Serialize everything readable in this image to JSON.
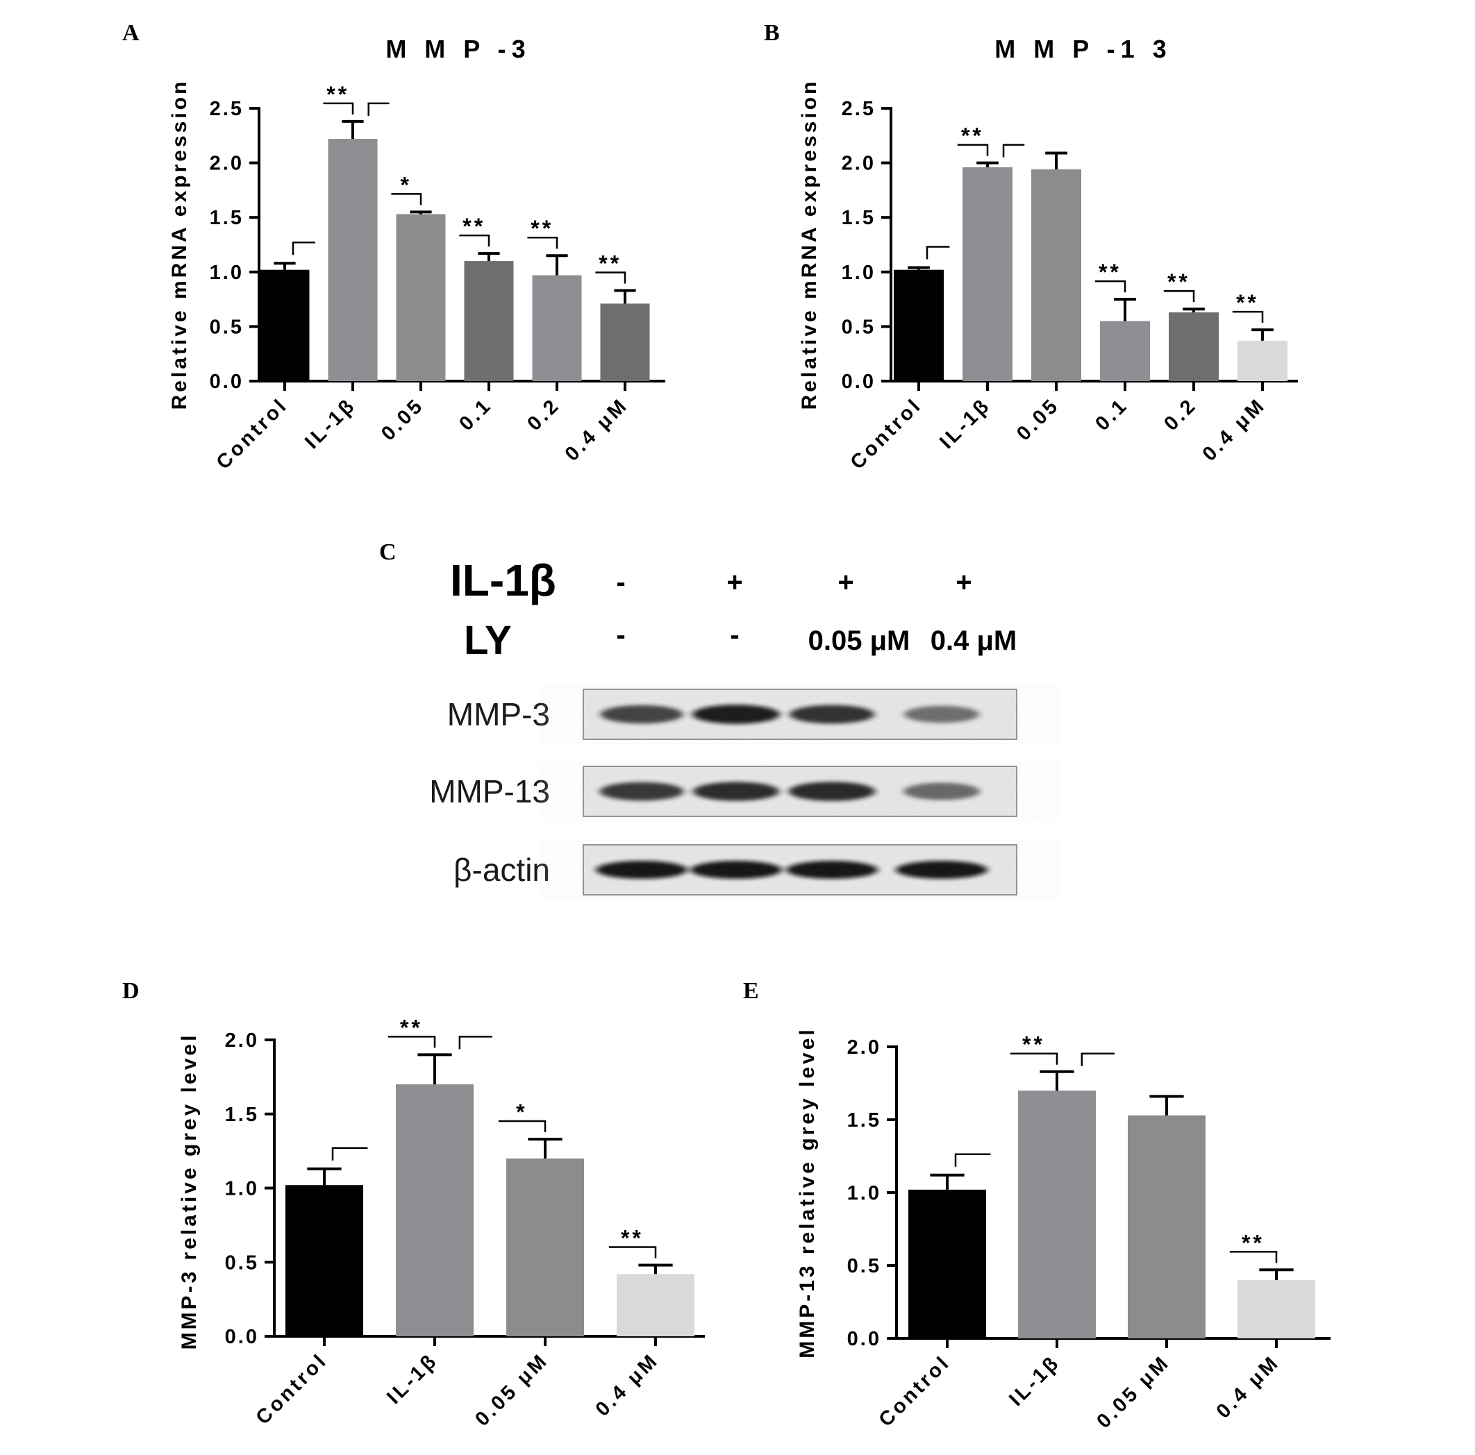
{
  "panels": {
    "A": "A",
    "B": "B",
    "C": "C",
    "D": "D",
    "E": "E"
  },
  "chart_data": [
    {
      "id": "A",
      "type": "bar",
      "title": "M M P -3",
      "ylabel": "Relative mRNA expression",
      "categories": [
        "Control",
        "IL-1β",
        "0.05",
        "0.1",
        "0.2",
        "0.4 μM"
      ],
      "values": [
        1.02,
        2.22,
        1.53,
        1.1,
        0.97,
        0.71
      ],
      "errors": [
        0.06,
        0.16,
        0.02,
        0.07,
        0.18,
        0.12
      ],
      "colors": [
        "#000000",
        "#8e8e93",
        "#8c8c8c",
        "#6e6e6e",
        "#8e8e93",
        "#6e6e6e"
      ],
      "ylim": [
        0,
        2.5
      ],
      "yticks": [
        "0.0",
        "0.5",
        "1.0",
        "1.5",
        "2.0",
        "2.5"
      ],
      "significance": [
        "",
        "**",
        "*",
        "**",
        "**",
        "**"
      ],
      "brackets": [
        0,
        1
      ]
    },
    {
      "id": "B",
      "type": "bar",
      "title": "M M P -1 3",
      "ylabel": "Relative mRNA expression",
      "categories": [
        "Control",
        "IL-1β",
        "0.05",
        "0.1",
        "0.2",
        "0.4 μM"
      ],
      "values": [
        1.02,
        1.96,
        1.94,
        0.55,
        0.63,
        0.37
      ],
      "errors": [
        0.02,
        0.04,
        0.15,
        0.2,
        0.03,
        0.1
      ],
      "colors": [
        "#000000",
        "#8e8e93",
        "#8c8c8c",
        "#8e8e93",
        "#6e6e6e",
        "#d9d9d9"
      ],
      "ylim": [
        0,
        2.5
      ],
      "yticks": [
        "0.0",
        "0.5",
        "1.0",
        "1.5",
        "2.0",
        "2.5"
      ],
      "significance": [
        "",
        "**",
        "",
        "**",
        "**",
        "**"
      ],
      "brackets": [
        0,
        1
      ]
    },
    {
      "id": "D",
      "type": "bar",
      "title": "",
      "ylabel": "MMP-3 relative grey level",
      "categories": [
        "Control",
        "IL-1β",
        "0.05 μM",
        "0.4 μM"
      ],
      "values": [
        1.02,
        1.7,
        1.2,
        0.42
      ],
      "errors": [
        0.11,
        0.2,
        0.13,
        0.06
      ],
      "colors": [
        "#000000",
        "#8e8e93",
        "#8c8c8c",
        "#d9d9d9"
      ],
      "ylim": [
        0,
        2.0
      ],
      "yticks": [
        "0.0",
        "0.5",
        "1.0",
        "1.5",
        "2.0"
      ],
      "significance": [
        "",
        "**",
        "*",
        "**"
      ],
      "brackets": [
        0,
        1
      ]
    },
    {
      "id": "E",
      "type": "bar",
      "title": "",
      "ylabel": "MMP-13 relative grey level",
      "categories": [
        "Control",
        "IL-1β",
        "0.05 μM",
        "0.4 μM"
      ],
      "values": [
        1.02,
        1.7,
        1.53,
        0.4
      ],
      "errors": [
        0.1,
        0.13,
        0.13,
        0.07
      ],
      "colors": [
        "#000000",
        "#8e8e93",
        "#8c8c8c",
        "#d9d9d9"
      ],
      "ylim": [
        0,
        2.0
      ],
      "yticks": [
        "0.0",
        "0.5",
        "1.0",
        "1.5",
        "2.0"
      ],
      "significance": [
        "",
        "**",
        "",
        "**"
      ],
      "brackets": [
        0,
        1
      ]
    }
  ],
  "blot": {
    "il1b_label": "IL-1β",
    "ly_label": "LY",
    "il1b": [
      "-",
      "+",
      "+",
      "+"
    ],
    "ly": [
      "-",
      "-",
      "0.05 μM",
      "0.4 μM"
    ],
    "rows": [
      {
        "label": "MMP-3",
        "intensity": [
          0.75,
          0.95,
          0.85,
          0.45
        ]
      },
      {
        "label": "MMP-13",
        "intensity": [
          0.8,
          0.9,
          0.92,
          0.5
        ]
      },
      {
        "label": "β-actin",
        "intensity": [
          1.0,
          1.0,
          1.0,
          1.0
        ]
      }
    ]
  }
}
